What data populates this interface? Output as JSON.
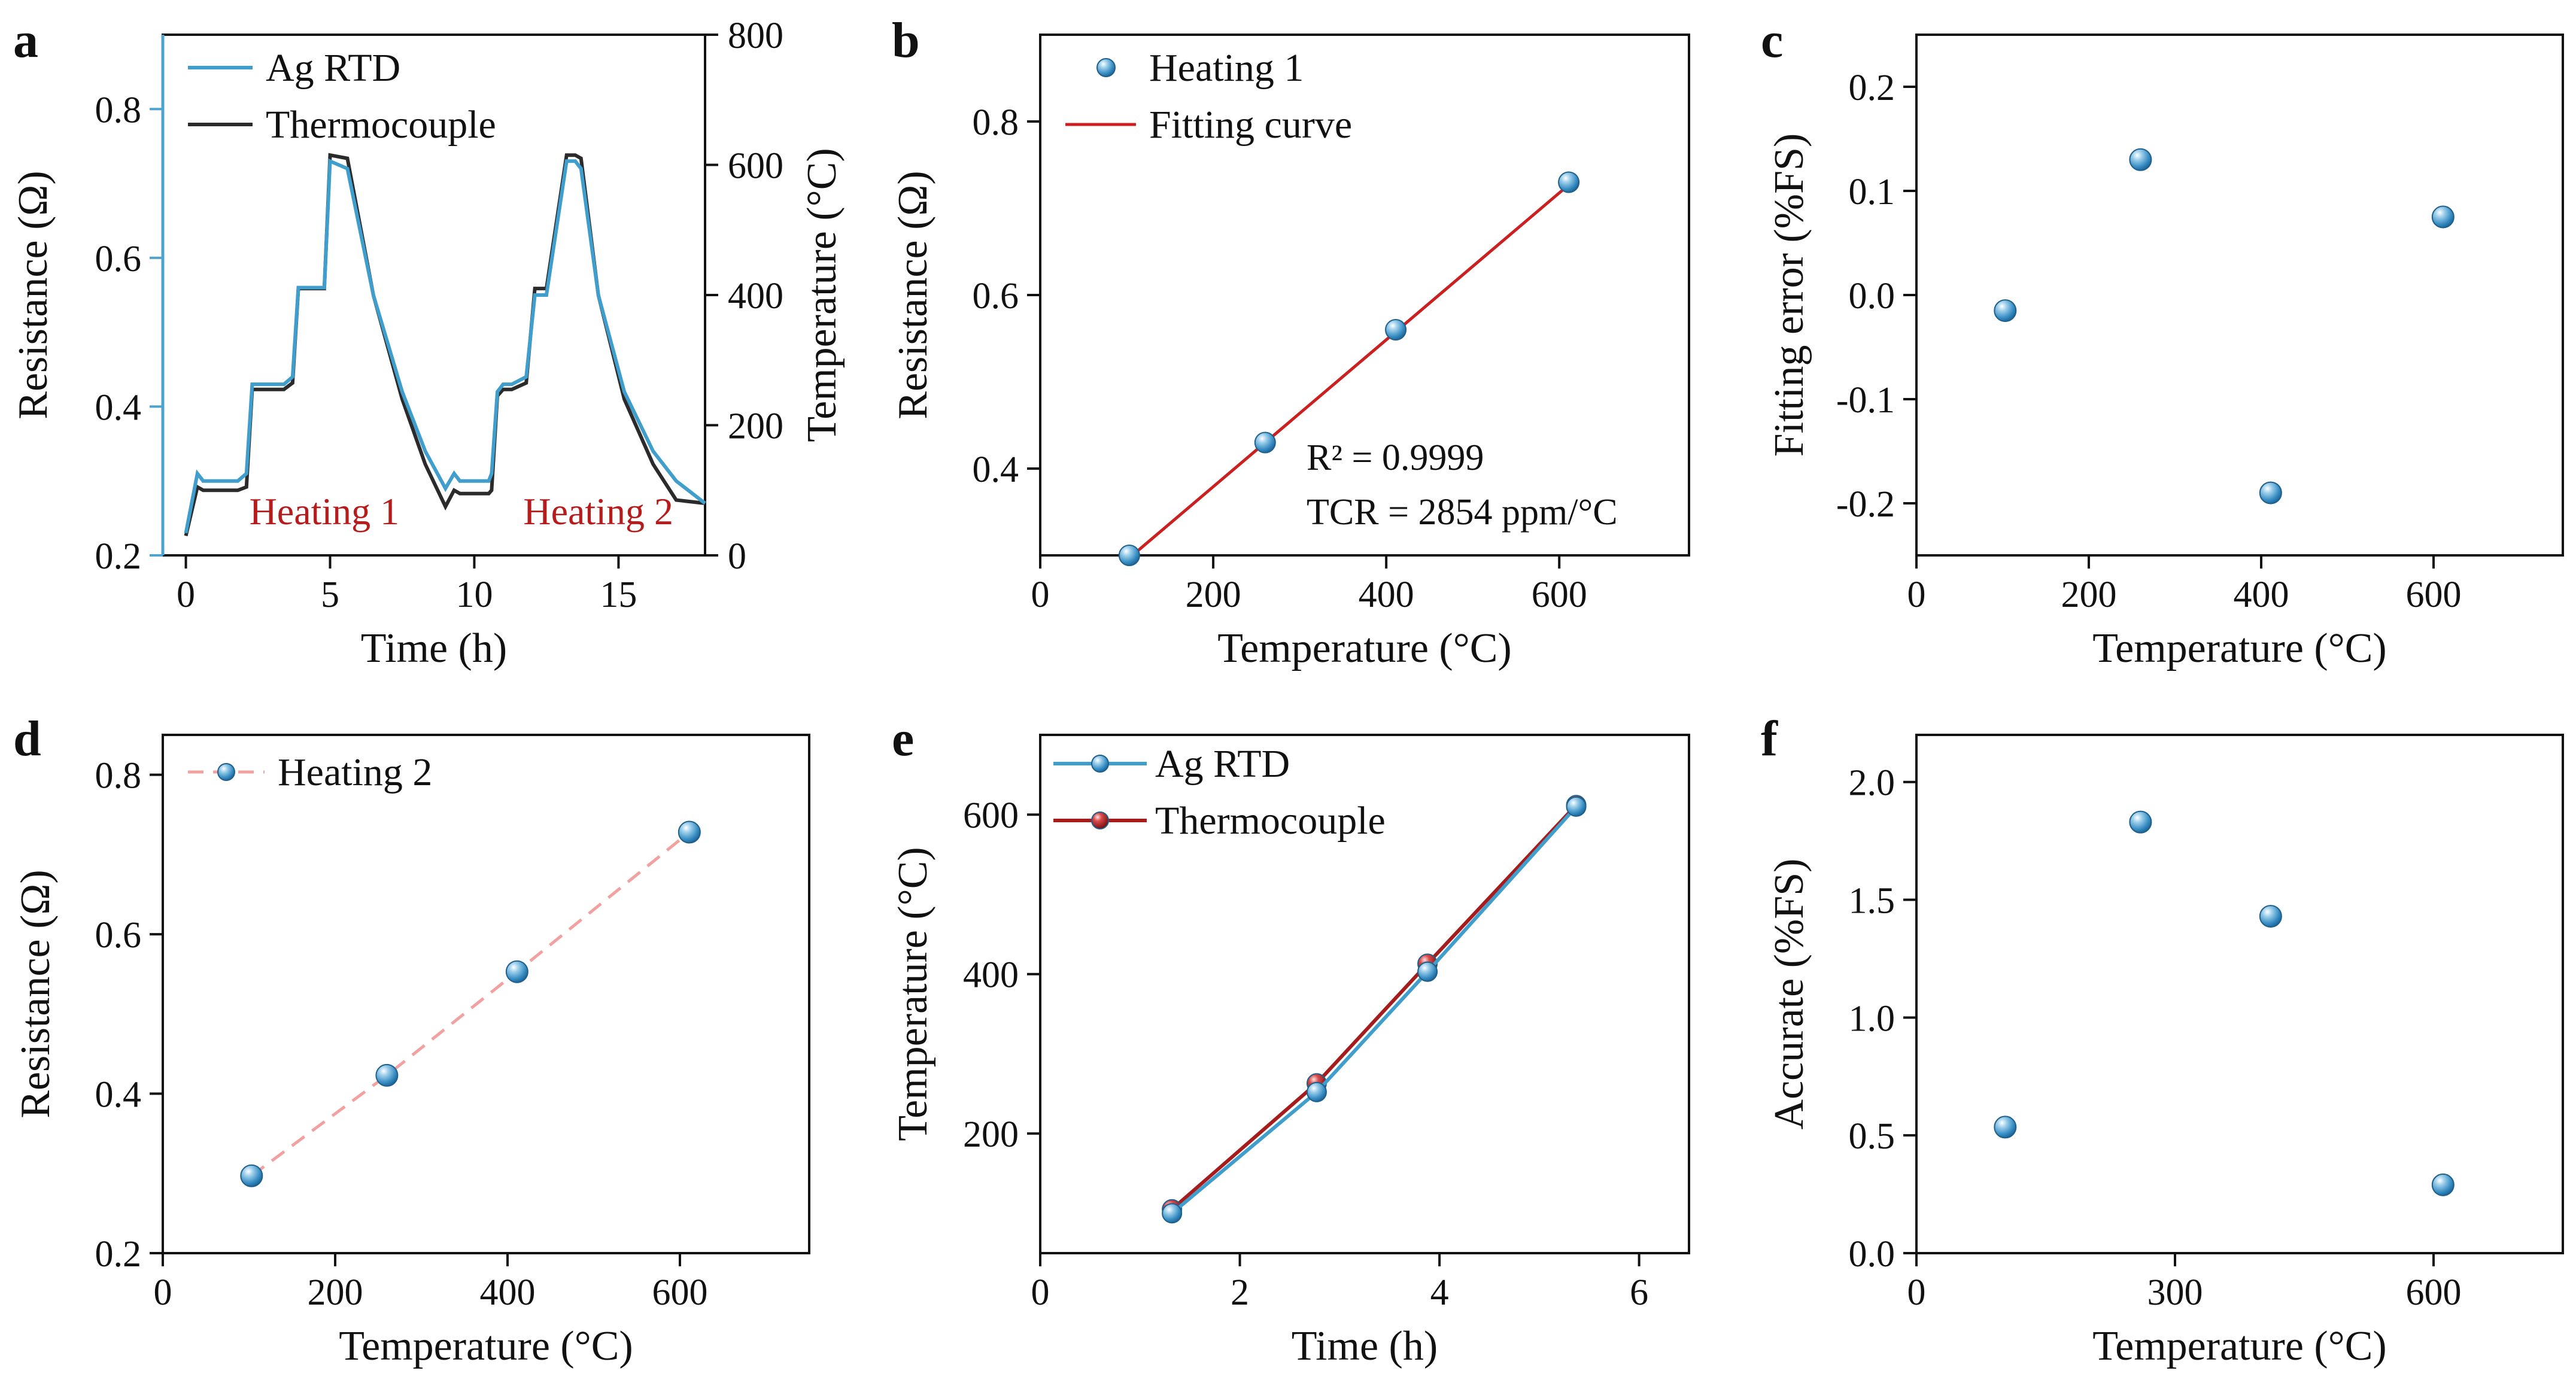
{
  "colors": {
    "blue": "#4fa3cf",
    "blue_line": "#3f9ecb",
    "dark": "#2b2b2b",
    "red": "#cc1f1f",
    "dark_red": "#a61c1c",
    "pink": "#f2a0a0",
    "annot_red": "#b71c1c"
  },
  "chart_data": [
    {
      "id": "a",
      "letter": "a",
      "type": "line",
      "xlabel": "Time (h)",
      "ylabel": "Resistance (Ω)",
      "y2label": "Temperature (°C)",
      "xlim": [
        -0.8,
        18
      ],
      "ylim": [
        0.2,
        0.9
      ],
      "y2lim": [
        0,
        800
      ],
      "xticks": [
        "0",
        "5",
        "10",
        "15"
      ],
      "xtick_values": [
        0,
        5,
        10,
        15
      ],
      "yticks": [
        "0.2",
        "0.4",
        "0.6",
        "0.8"
      ],
      "ytick_values": [
        0.2,
        0.4,
        0.6,
        0.8
      ],
      "y2ticks": [
        "0",
        "200",
        "400",
        "600",
        "800"
      ],
      "y2tick_values": [
        0,
        200,
        400,
        600,
        800
      ],
      "legend": [
        "Ag RTD",
        "Thermocouple"
      ],
      "annotations": [
        "Heating 1",
        "Heating 2"
      ],
      "series": [
        {
          "name": "Ag RTD",
          "axis": "left",
          "x": [
            0,
            0.4,
            0.6,
            1.8,
            2.1,
            2.3,
            2.6,
            3.4,
            3.7,
            3.9,
            4.2,
            4.8,
            5.0,
            5.6,
            6.5,
            7.5,
            8.3,
            9.0,
            9.3,
            9.5,
            9.8,
            10.5,
            10.6,
            10.8,
            11.0,
            11.3,
            11.8,
            12.1,
            12.2,
            12.5,
            13.2,
            13.5,
            13.7,
            14.3,
            15.2,
            16.2,
            17.0,
            18.0
          ],
          "y": [
            0.23,
            0.31,
            0.3,
            0.3,
            0.31,
            0.43,
            0.43,
            0.43,
            0.44,
            0.56,
            0.56,
            0.56,
            0.73,
            0.72,
            0.55,
            0.42,
            0.34,
            0.29,
            0.31,
            0.3,
            0.3,
            0.3,
            0.31,
            0.42,
            0.43,
            0.43,
            0.44,
            0.55,
            0.55,
            0.55,
            0.73,
            0.73,
            0.72,
            0.55,
            0.42,
            0.34,
            0.3,
            0.27
          ]
        },
        {
          "name": "Thermocouple",
          "axis": "right",
          "x": [
            0,
            0.4,
            0.6,
            1.8,
            2.1,
            2.3,
            2.6,
            3.4,
            3.7,
            3.9,
            4.2,
            4.8,
            5.0,
            5.6,
            6.5,
            7.5,
            8.3,
            9.0,
            9.3,
            9.5,
            9.8,
            10.5,
            10.6,
            10.8,
            11.0,
            11.3,
            11.8,
            12.1,
            12.2,
            12.5,
            13.2,
            13.5,
            13.7,
            14.3,
            15.2,
            16.2,
            17.0,
            18.0
          ],
          "y": [
            30,
            105,
            100,
            100,
            105,
            255,
            255,
            255,
            265,
            410,
            410,
            410,
            615,
            610,
            400,
            240,
            140,
            75,
            100,
            95,
            95,
            95,
            100,
            245,
            255,
            255,
            265,
            410,
            410,
            410,
            615,
            615,
            610,
            400,
            240,
            140,
            85,
            80
          ]
        }
      ]
    },
    {
      "id": "b",
      "letter": "b",
      "type": "scatter",
      "xlabel": "Temperature (°C)",
      "ylabel": "Resistance (Ω)",
      "xlim": [
        0,
        750
      ],
      "ylim": [
        0.3,
        0.9
      ],
      "xticks": [
        "0",
        "200",
        "400",
        "600"
      ],
      "xtick_values": [
        0,
        200,
        400,
        600
      ],
      "yticks": [
        "0.4",
        "0.6",
        "0.8"
      ],
      "ytick_values": [
        0.4,
        0.6,
        0.8
      ],
      "legend": [
        "Heating 1",
        "Fitting curve"
      ],
      "annotations": [
        "R² = 0.9999",
        "TCR = 2854 ppm/°C"
      ],
      "series": [
        {
          "name": "Heating 1",
          "x": [
            103,
            260,
            411,
            611
          ],
          "y": [
            0.3,
            0.43,
            0.56,
            0.73
          ]
        },
        {
          "name": "Fitting curve",
          "x": [
            103,
            611
          ],
          "y": [
            0.297,
            0.727
          ]
        }
      ]
    },
    {
      "id": "c",
      "letter": "c",
      "type": "scatter",
      "xlabel": "Temperature (°C)",
      "ylabel": "Fitting error (%FS)",
      "xlim": [
        0,
        750
      ],
      "ylim": [
        -0.25,
        0.25
      ],
      "xticks": [
        "0",
        "200",
        "400",
        "600"
      ],
      "xtick_values": [
        0,
        200,
        400,
        600
      ],
      "yticks": [
        "-0.2",
        "-0.1",
        "0.0",
        "0.1",
        "0.2"
      ],
      "ytick_values": [
        -0.2,
        -0.1,
        0.0,
        0.1,
        0.2
      ],
      "series": [
        {
          "name": "Fitting error",
          "x": [
            103,
            260,
            411,
            611
          ],
          "y": [
            -0.015,
            0.13,
            -0.19,
            0.075
          ]
        }
      ]
    },
    {
      "id": "d",
      "letter": "d",
      "type": "scatter",
      "xlabel": "Temperature (°C)",
      "ylabel": "Resistance (Ω)",
      "xlim": [
        0,
        750
      ],
      "ylim": [
        0.2,
        0.85
      ],
      "xticks": [
        "0",
        "200",
        "400",
        "600"
      ],
      "xtick_values": [
        0,
        200,
        400,
        600
      ],
      "yticks": [
        "0.2",
        "0.4",
        "0.6",
        "0.8"
      ],
      "ytick_values": [
        0.2,
        0.4,
        0.6,
        0.8
      ],
      "legend": [
        "Heating 2"
      ],
      "series": [
        {
          "name": "Heating 2",
          "x": [
            103,
            260,
            411,
            611
          ],
          "y": [
            0.297,
            0.423,
            0.553,
            0.728
          ]
        }
      ]
    },
    {
      "id": "e",
      "letter": "e",
      "type": "line",
      "xlabel": "Time (h)",
      "ylabel": "Temperature (°C)",
      "xlim": [
        0,
        6.5
      ],
      "ylim": [
        50,
        700
      ],
      "xticks": [
        "0",
        "2",
        "4",
        "6"
      ],
      "xtick_values": [
        0,
        2,
        4,
        6
      ],
      "yticks": [
        "200",
        "400",
        "600"
      ],
      "ytick_values": [
        200,
        400,
        600
      ],
      "legend": [
        "Ag RTD",
        "Thermocouple"
      ],
      "series": [
        {
          "name": "Ag RTD",
          "x": [
            1.32,
            2.77,
            3.88,
            5.37
          ],
          "y": [
            100,
            252,
            403,
            610
          ]
        },
        {
          "name": "Thermocouple",
          "x": [
            1.32,
            2.77,
            3.88,
            5.37
          ],
          "y": [
            105,
            263,
            413,
            612
          ]
        }
      ]
    },
    {
      "id": "f",
      "letter": "f",
      "type": "scatter",
      "xlabel": "Temperature (°C)",
      "ylabel": "Accurate (%FS)",
      "xlim": [
        0,
        750
      ],
      "ylim": [
        0,
        2.2
      ],
      "xticks": [
        "0",
        "300",
        "600"
      ],
      "xtick_values": [
        0,
        300,
        600
      ],
      "yticks": [
        "0.0",
        "0.5",
        "1.0",
        "1.5",
        "2.0"
      ],
      "ytick_values": [
        0.0,
        0.5,
        1.0,
        1.5,
        2.0
      ],
      "series": [
        {
          "name": "Accurate",
          "x": [
            103,
            260,
            411,
            611
          ],
          "y": [
            0.535,
            1.83,
            1.43,
            0.29
          ]
        }
      ]
    }
  ]
}
